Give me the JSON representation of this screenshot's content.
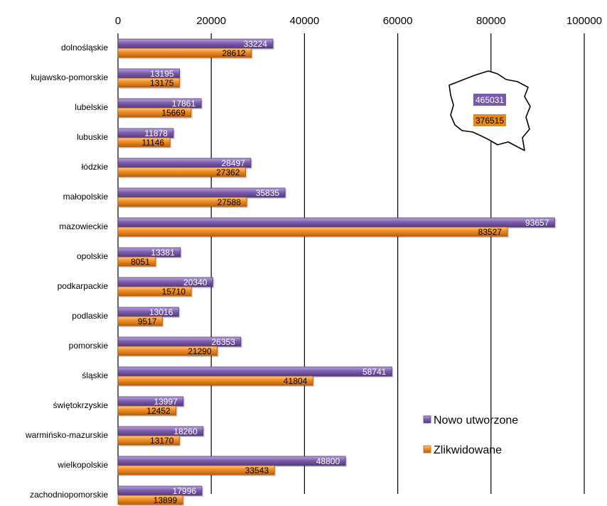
{
  "chart_data": {
    "type": "bar",
    "orientation": "horizontal",
    "categories": [
      "dolnośląskie",
      "kujawsko-pomorskie",
      "lubelskie",
      "lubuskie",
      "łódzkie",
      "małopolskie",
      "mazowieckie",
      "opolskie",
      "podkarpackie",
      "podlaskie",
      "pomorskie",
      "śląskie",
      "świętokrzyskie",
      "warmińsko-mazurskie",
      "wielkopolskie",
      "zachodniopomorskie"
    ],
    "series": [
      {
        "name": "Nowo utworzone",
        "color": "#7a5aa8",
        "values": [
          33224,
          13195,
          17861,
          11878,
          28497,
          35835,
          93657,
          13381,
          20340,
          13016,
          26353,
          58741,
          13997,
          18260,
          48800,
          17996
        ]
      },
      {
        "name": "Zlikwidowane",
        "color": "#e8871f",
        "values": [
          28612,
          13175,
          15669,
          11146,
          27362,
          27588,
          83527,
          8051,
          15710,
          9517,
          21290,
          41804,
          12452,
          13170,
          33543,
          13899
        ]
      }
    ],
    "xlim": [
      0,
      100000
    ],
    "x_ticks": [
      "0",
      "20000",
      "40000",
      "60000",
      "80000",
      "100000"
    ],
    "x_tick_values": [
      0,
      20000,
      40000,
      60000,
      80000,
      100000
    ],
    "x_axis_position": "top",
    "grid": true,
    "legend_position": "bottom-right",
    "inset": {
      "shape": "map-of-poland",
      "totals": [
        "465031",
        "376515"
      ]
    }
  }
}
